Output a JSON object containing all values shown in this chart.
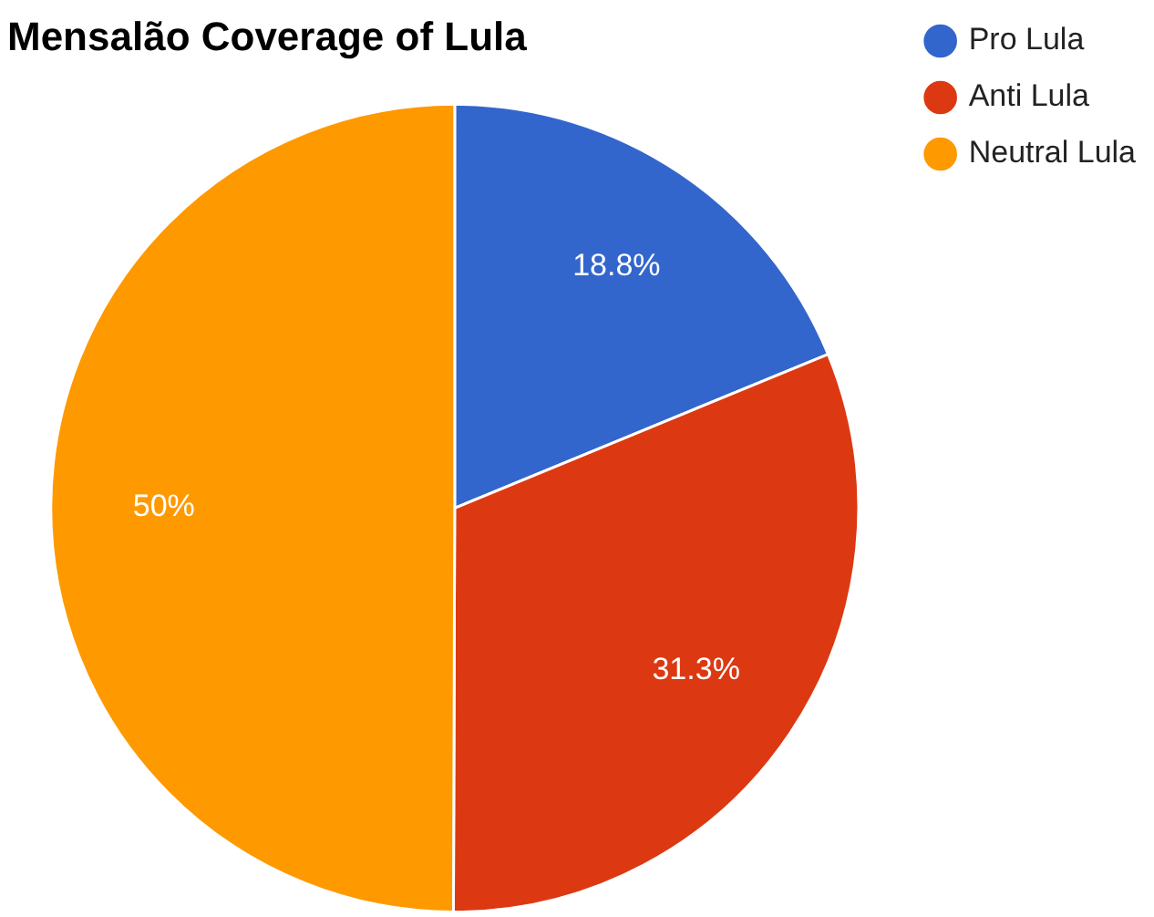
{
  "chart_data": {
    "type": "pie",
    "title": "Mensalão Coverage of Lula",
    "categories": [
      "Pro Lula",
      "Anti Lula",
      "Neutral Lula"
    ],
    "values": [
      18.8,
      31.3,
      50
    ],
    "colors": [
      "#3366cc",
      "#dc3912",
      "#ff9900"
    ],
    "value_labels": [
      "18.8%",
      "31.3%",
      "50%"
    ],
    "legend": "top right"
  }
}
